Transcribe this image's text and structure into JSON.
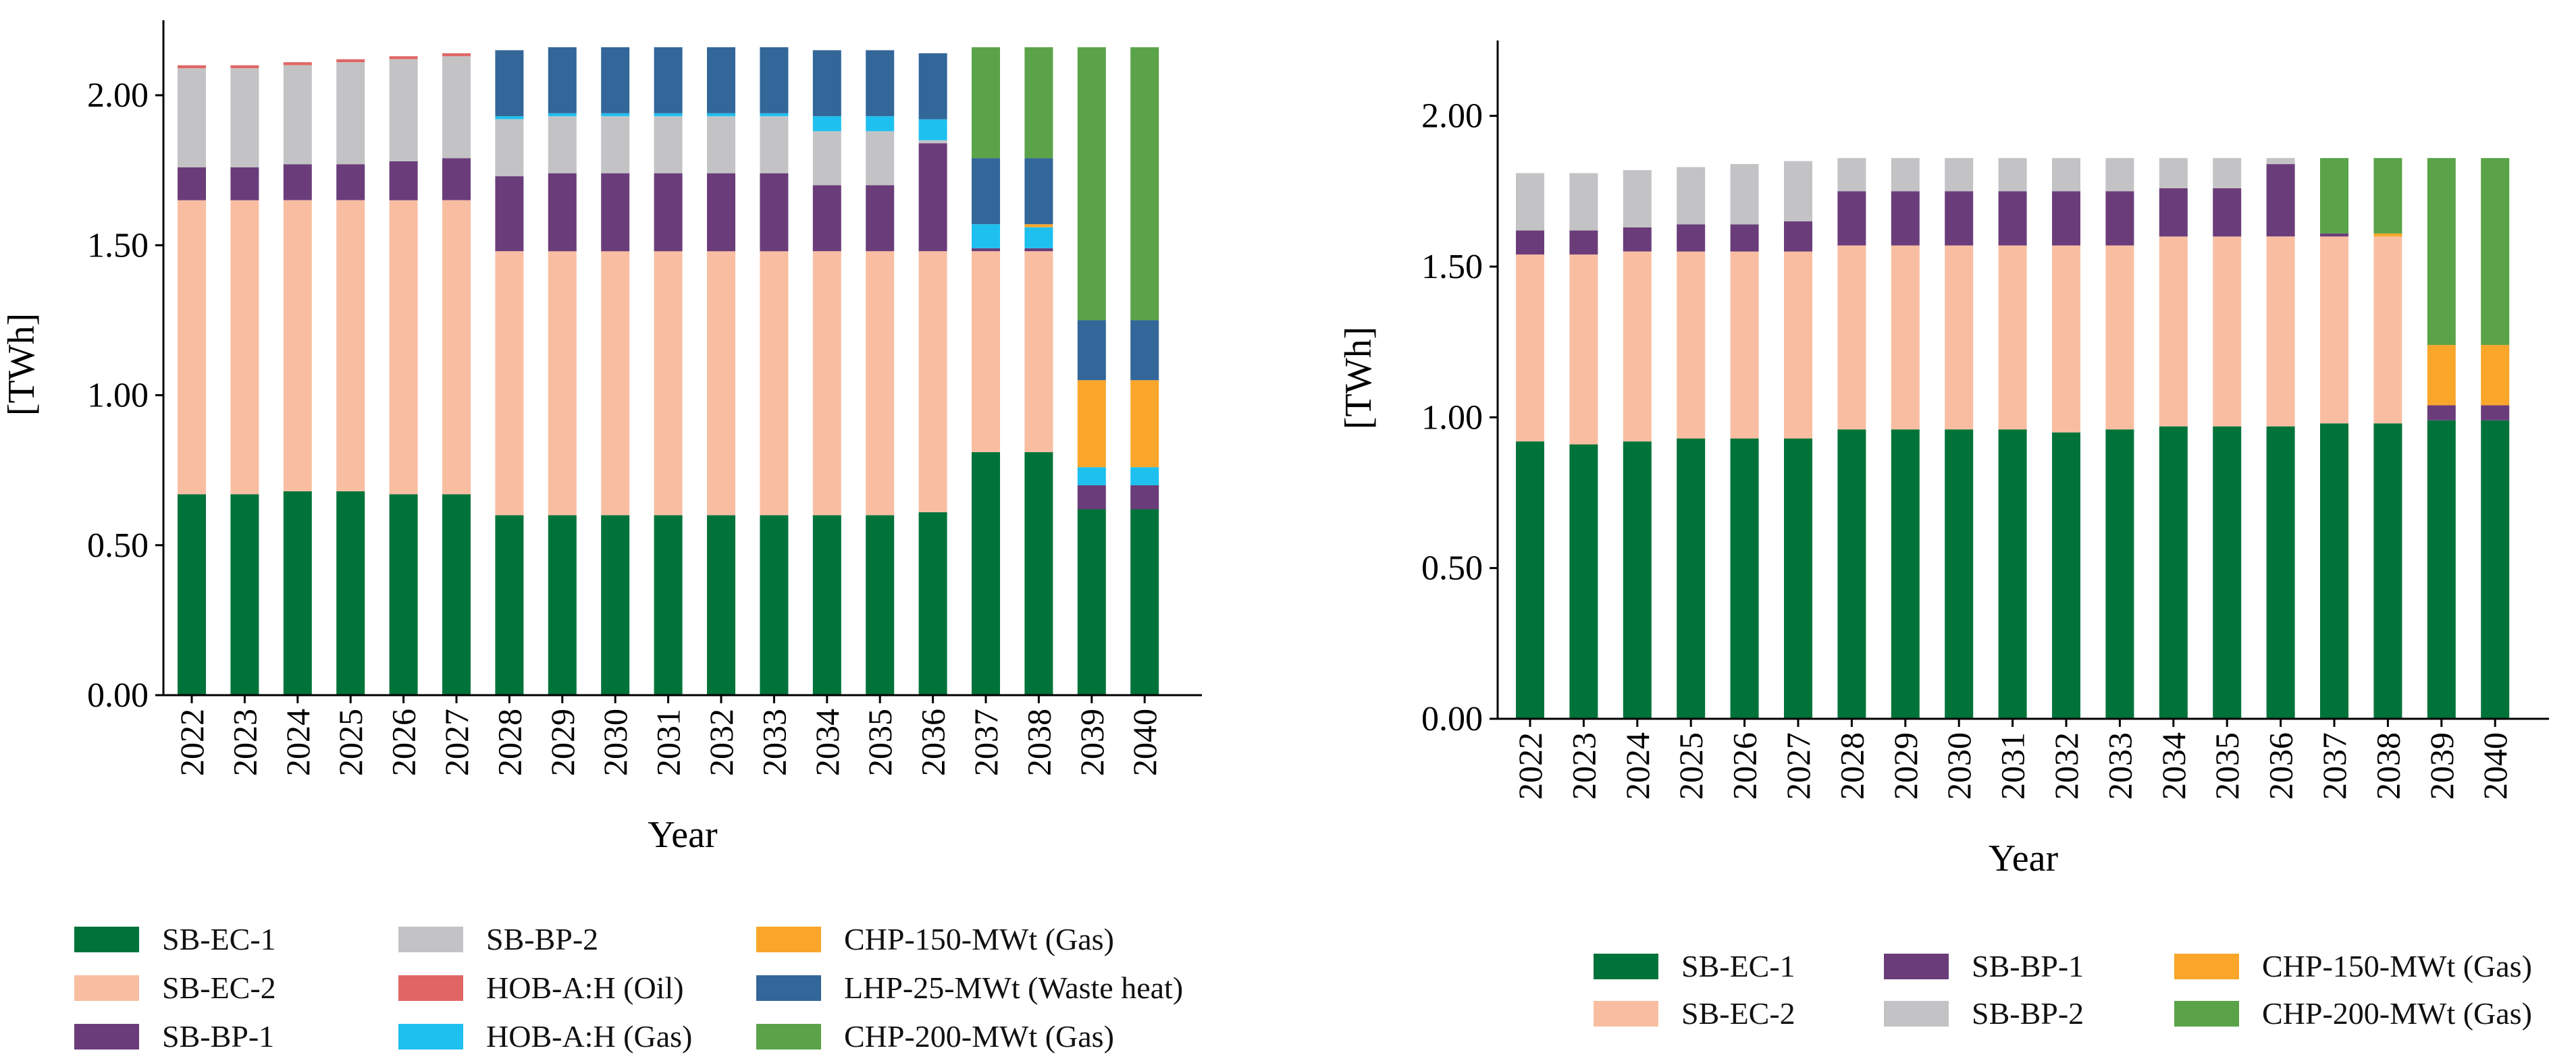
{
  "chart_data": [
    {
      "type": "bar",
      "stacked": true,
      "title": "",
      "xlabel": "Year",
      "ylabel": "[TWh]",
      "ylim": [
        0,
        2.25
      ],
      "yticks": [
        "0.00",
        "0.50",
        "1.00",
        "1.50",
        "2.00"
      ],
      "categories": [
        "2022",
        "2023",
        "2024",
        "2025",
        "2026",
        "2027",
        "2028",
        "2029",
        "2030",
        "2031",
        "2032",
        "2033",
        "2034",
        "2035",
        "2036",
        "2037",
        "2038",
        "2039",
        "2040"
      ],
      "series": [
        {
          "name": "SB-EC-1",
          "color": "#00733a",
          "values": [
            0.67,
            0.67,
            0.68,
            0.68,
            0.67,
            0.67,
            0.6,
            0.6,
            0.6,
            0.6,
            0.6,
            0.6,
            0.6,
            0.6,
            0.61,
            0.81,
            0.81,
            0.62,
            0.62
          ]
        },
        {
          "name": "SB-EC-2",
          "color": "#f9bea2",
          "values": [
            0.98,
            0.98,
            0.97,
            0.97,
            0.98,
            0.98,
            0.88,
            0.88,
            0.88,
            0.88,
            0.88,
            0.88,
            0.88,
            0.88,
            0.87,
            0.67,
            0.67,
            0.0,
            0.0
          ]
        },
        {
          "name": "SB-BP-1",
          "color": "#6a3d7a",
          "values": [
            0.11,
            0.11,
            0.12,
            0.12,
            0.13,
            0.14,
            0.25,
            0.26,
            0.26,
            0.26,
            0.26,
            0.26,
            0.22,
            0.22,
            0.36,
            0.01,
            0.01,
            0.08,
            0.08
          ]
        },
        {
          "name": "SB-BP-2",
          "color": "#c3c3c5",
          "values": [
            0.33,
            0.33,
            0.33,
            0.34,
            0.34,
            0.34,
            0.19,
            0.19,
            0.19,
            0.19,
            0.19,
            0.19,
            0.18,
            0.18,
            0.01,
            0.0,
            0.0,
            0.0,
            0.0
          ]
        },
        {
          "name": "HOB-A:H (Oil)",
          "color": "#e06666",
          "values": [
            0.01,
            0.01,
            0.01,
            0.01,
            0.01,
            0.01,
            0.0,
            0.0,
            0.0,
            0.0,
            0.0,
            0.0,
            0.0,
            0.0,
            0.0,
            0.0,
            0.0,
            0.0,
            0.0
          ]
        },
        {
          "name": "HOB-A:H (Gas)",
          "color": "#1ec0ef",
          "values": [
            0.0,
            0.0,
            0.0,
            0.0,
            0.0,
            0.0,
            0.01,
            0.01,
            0.01,
            0.01,
            0.01,
            0.01,
            0.05,
            0.05,
            0.07,
            0.08,
            0.07,
            0.06,
            0.06
          ]
        },
        {
          "name": "CHP-150-MWt (Gas)",
          "color": "#f9a62b",
          "values": [
            0.0,
            0.0,
            0.0,
            0.0,
            0.0,
            0.0,
            0.0,
            0.0,
            0.0,
            0.0,
            0.0,
            0.0,
            0.0,
            0.0,
            0.0,
            0.0,
            0.01,
            0.29,
            0.29
          ]
        },
        {
          "name": "LHP-25-MWt (Waste heat)",
          "color": "#336699",
          "values": [
            0.0,
            0.0,
            0.0,
            0.0,
            0.0,
            0.0,
            0.22,
            0.22,
            0.22,
            0.22,
            0.22,
            0.22,
            0.22,
            0.22,
            0.22,
            0.22,
            0.22,
            0.2,
            0.2
          ]
        },
        {
          "name": "CHP-200-MWt (Gas)",
          "color": "#5aa348",
          "values": [
            0.0,
            0.0,
            0.0,
            0.0,
            0.0,
            0.0,
            0.0,
            0.0,
            0.0,
            0.0,
            0.0,
            0.0,
            0.0,
            0.0,
            0.0,
            0.37,
            0.37,
            0.91,
            0.91
          ]
        }
      ],
      "legend": "bottom"
    },
    {
      "type": "bar",
      "stacked": true,
      "title": "",
      "xlabel": "Year",
      "ylabel": "[TWh]",
      "ylim": [
        0,
        2.25
      ],
      "yticks": [
        "0.00",
        "0.50",
        "1.00",
        "1.50",
        "2.00"
      ],
      "categories": [
        "2022",
        "2023",
        "2024",
        "2025",
        "2026",
        "2027",
        "2028",
        "2029",
        "2030",
        "2031",
        "2032",
        "2033",
        "2034",
        "2035",
        "2036",
        "2037",
        "2038",
        "2039",
        "2040"
      ],
      "series": [
        {
          "name": "SB-EC-1",
          "color": "#00733a",
          "values": [
            0.92,
            0.91,
            0.92,
            0.93,
            0.93,
            0.93,
            0.96,
            0.96,
            0.96,
            0.96,
            0.95,
            0.96,
            0.97,
            0.97,
            0.97,
            0.98,
            0.98,
            0.99,
            0.99
          ]
        },
        {
          "name": "SB-EC-2",
          "color": "#f9bea2",
          "values": [
            0.62,
            0.63,
            0.63,
            0.62,
            0.62,
            0.62,
            0.61,
            0.61,
            0.61,
            0.61,
            0.62,
            0.61,
            0.63,
            0.63,
            0.63,
            0.62,
            0.62,
            0.0,
            0.0
          ]
        },
        {
          "name": "SB-BP-1",
          "color": "#6a3d7a",
          "values": [
            0.08,
            0.08,
            0.08,
            0.09,
            0.09,
            0.1,
            0.18,
            0.18,
            0.18,
            0.18,
            0.18,
            0.18,
            0.16,
            0.16,
            0.24,
            0.01,
            0.0,
            0.05,
            0.05
          ]
        },
        {
          "name": "SB-BP-2",
          "color": "#c3c3c5",
          "values": [
            0.19,
            0.19,
            0.19,
            0.19,
            0.2,
            0.2,
            0.11,
            0.11,
            0.11,
            0.11,
            0.11,
            0.11,
            0.1,
            0.1,
            0.02,
            0.0,
            0.0,
            0.0,
            0.0
          ]
        },
        {
          "name": "CHP-150-MWt (Gas)",
          "color": "#f9a62b",
          "values": [
            0.0,
            0.0,
            0.0,
            0.0,
            0.0,
            0.0,
            0.0,
            0.0,
            0.0,
            0.0,
            0.0,
            0.0,
            0.0,
            0.0,
            0.0,
            0.0,
            0.01,
            0.2,
            0.2
          ]
        },
        {
          "name": "CHP-200-MWt (Gas)",
          "color": "#5aa348",
          "values": [
            0.0,
            0.0,
            0.0,
            0.0,
            0.0,
            0.0,
            0.0,
            0.0,
            0.0,
            0.0,
            0.0,
            0.0,
            0.0,
            0.0,
            0.0,
            0.25,
            0.25,
            0.62,
            0.62
          ]
        }
      ],
      "legend": "bottom"
    }
  ]
}
